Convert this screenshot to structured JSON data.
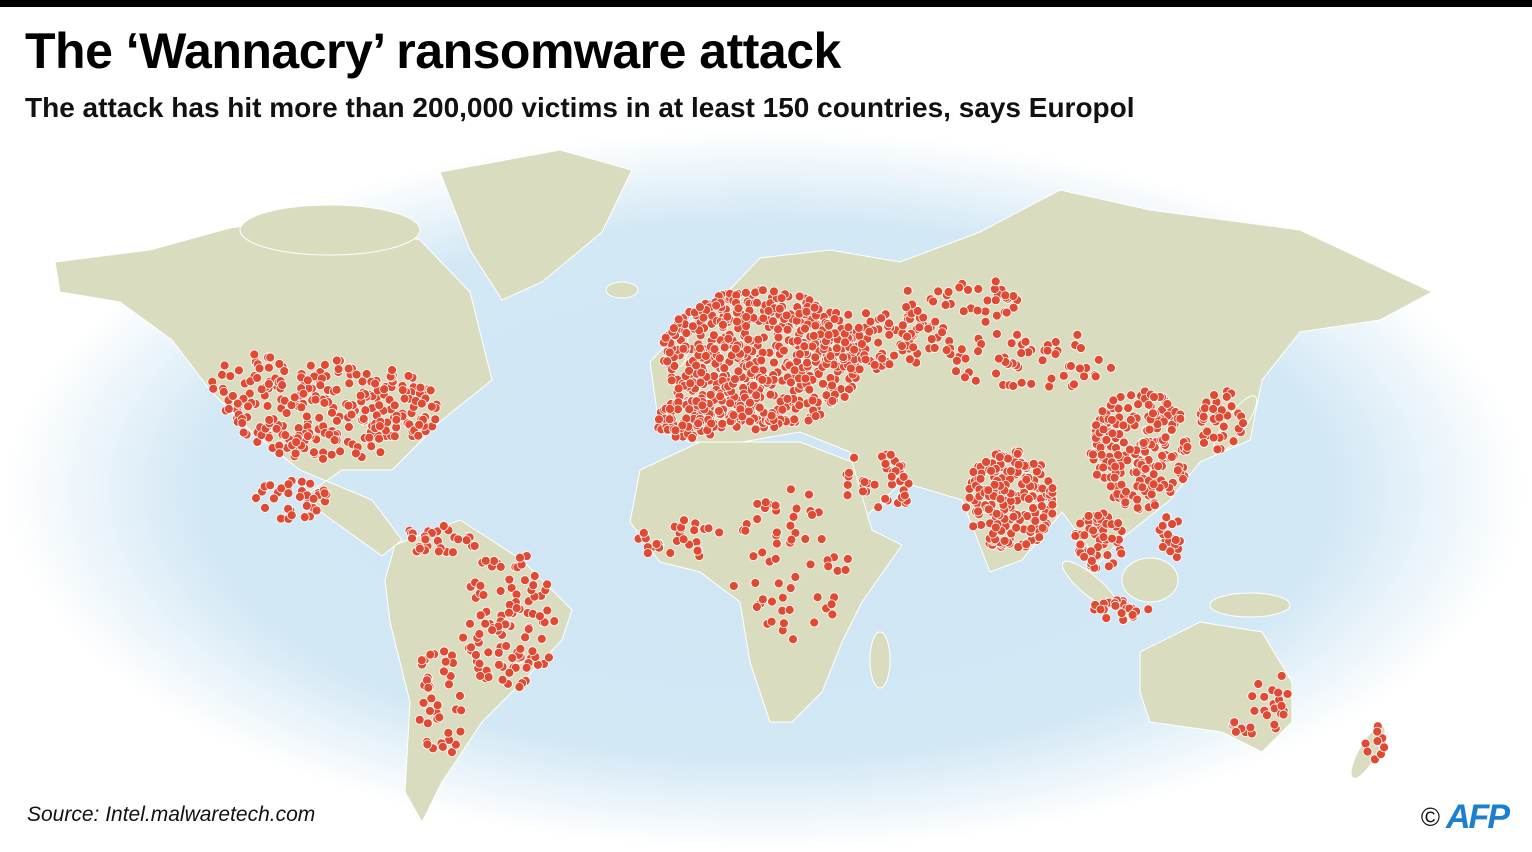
{
  "header": {
    "title": "The ‘Wannacry’ ransomware attack",
    "subtitle": "The attack has hit more than 200,000 victims in at least 150 countries, says Europol"
  },
  "footer": {
    "source": "Source: Intel.malwaretech.com",
    "copyright_symbol": "©",
    "logo": "AFP"
  },
  "map": {
    "projection": "world",
    "marker_meaning": "infection locations",
    "colors": {
      "ocean": "#cfe5f4",
      "land": "#d9dcbf",
      "borders": "#ffffff",
      "marker": "#e04a33",
      "logo": "#1b7fd0"
    }
  }
}
